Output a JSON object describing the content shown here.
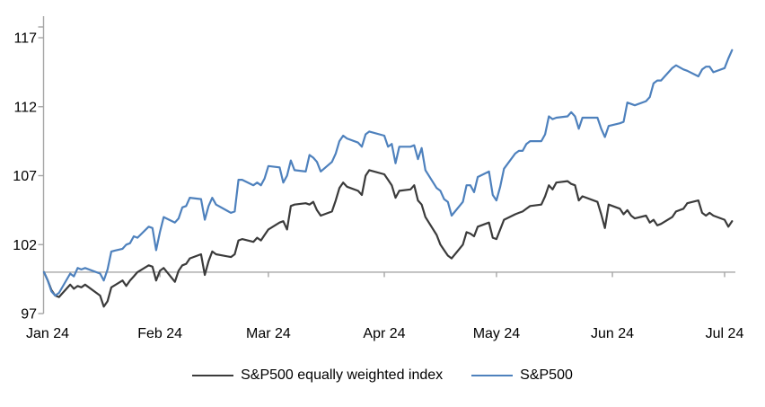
{
  "chart_data": {
    "type": "line",
    "title": "",
    "xlabel": "",
    "ylabel": "",
    "grid": false,
    "legend_position": "bottom-center",
    "background_color": "#ffffff",
    "axis_color": "#a6a6a6",
    "text_color": "#000000",
    "baseline_value": 100,
    "x_axis": {
      "tick_labels": [
        "Jan 24",
        "Feb 24",
        "Mar 24",
        "Apr 24",
        "May 24",
        "Jun 24",
        "Jul 24"
      ],
      "start_date": "2024-01-01",
      "end_date": "2024-07-03"
    },
    "y_axis": {
      "ticks": [
        97,
        102,
        107,
        112,
        117
      ],
      "tick_labels": [
        "97",
        "102",
        "107",
        "112",
        "117"
      ],
      "min": 97,
      "max": 118
    },
    "dates": [
      "01-01",
      "01-02",
      "01-03",
      "01-04",
      "01-05",
      "01-08",
      "01-09",
      "01-10",
      "01-11",
      "01-12",
      "01-16",
      "01-17",
      "01-18",
      "01-19",
      "01-22",
      "01-23",
      "01-24",
      "01-25",
      "01-26",
      "01-29",
      "01-30",
      "01-31",
      "02-01",
      "02-02",
      "02-05",
      "02-06",
      "02-07",
      "02-08",
      "02-09",
      "02-12",
      "02-13",
      "02-14",
      "02-15",
      "02-16",
      "02-20",
      "02-21",
      "02-22",
      "02-23",
      "02-26",
      "02-27",
      "02-28",
      "02-29",
      "03-01",
      "03-04",
      "03-05",
      "03-06",
      "03-07",
      "03-08",
      "03-11",
      "03-12",
      "03-13",
      "03-14",
      "03-15",
      "03-18",
      "03-19",
      "03-20",
      "03-21",
      "03-22",
      "03-25",
      "03-26",
      "03-27",
      "03-28",
      "04-01",
      "04-02",
      "04-03",
      "04-04",
      "04-05",
      "04-08",
      "04-09",
      "04-10",
      "04-11",
      "04-12",
      "04-15",
      "04-16",
      "04-17",
      "04-18",
      "04-19",
      "04-22",
      "04-23",
      "04-24",
      "04-25",
      "04-26",
      "04-29",
      "04-30",
      "05-01",
      "05-02",
      "05-03",
      "05-06",
      "05-07",
      "05-08",
      "05-09",
      "05-10",
      "05-13",
      "05-14",
      "05-15",
      "05-16",
      "05-17",
      "05-20",
      "05-21",
      "05-22",
      "05-23",
      "05-24",
      "05-28",
      "05-29",
      "05-30",
      "05-31",
      "06-03",
      "06-04",
      "06-05",
      "06-06",
      "06-07",
      "06-10",
      "06-11",
      "06-12",
      "06-13",
      "06-14",
      "06-17",
      "06-18",
      "06-20",
      "06-21",
      "06-24",
      "06-25",
      "06-26",
      "06-27",
      "06-28",
      "07-01",
      "07-02",
      "07-03"
    ],
    "series": [
      {
        "name": "S&P500 equally weighted index",
        "color": "#3b3b3b",
        "values": [
          100.0,
          99.4,
          98.7,
          98.3,
          98.2,
          99.1,
          98.8,
          99.0,
          98.9,
          99.1,
          98.3,
          97.5,
          97.9,
          98.9,
          99.4,
          99.0,
          99.4,
          99.7,
          100.0,
          100.5,
          100.4,
          99.4,
          100.1,
          100.3,
          99.3,
          100.1,
          100.5,
          100.6,
          101.0,
          101.3,
          99.8,
          100.8,
          101.5,
          101.3,
          101.1,
          101.3,
          102.3,
          102.4,
          102.2,
          102.5,
          102.3,
          102.7,
          103.1,
          103.6,
          103.7,
          103.1,
          104.8,
          104.9,
          105.0,
          104.9,
          105.1,
          104.5,
          104.1,
          104.4,
          105.2,
          106.1,
          106.5,
          106.2,
          105.9,
          105.6,
          107.0,
          107.4,
          107.1,
          106.7,
          106.3,
          105.4,
          105.9,
          106.0,
          106.3,
          105.2,
          104.9,
          104.0,
          102.7,
          102.0,
          101.6,
          101.2,
          101.0,
          102.0,
          102.9,
          102.8,
          102.6,
          103.3,
          103.6,
          102.5,
          102.4,
          103.1,
          103.8,
          104.2,
          104.3,
          104.4,
          104.6,
          104.8,
          104.9,
          105.5,
          106.3,
          106.0,
          106.5,
          106.6,
          106.4,
          106.3,
          105.2,
          105.5,
          105.1,
          104.2,
          103.2,
          104.9,
          104.6,
          104.2,
          104.5,
          104.1,
          103.9,
          104.1,
          103.6,
          103.8,
          103.4,
          103.5,
          104.0,
          104.4,
          104.6,
          105.0,
          105.2,
          104.3,
          104.1,
          104.3,
          104.1,
          103.8,
          103.3,
          103.7
        ]
      },
      {
        "name": "S&P500",
        "color": "#4e81bd",
        "values": [
          100.0,
          99.4,
          98.6,
          98.3,
          98.5,
          99.9,
          99.7,
          100.3,
          100.2,
          100.3,
          99.9,
          99.4,
          100.2,
          101.5,
          101.7,
          102.0,
          102.1,
          102.6,
          102.5,
          103.3,
          103.2,
          101.6,
          102.9,
          104.0,
          103.6,
          103.9,
          104.7,
          104.8,
          105.4,
          105.3,
          103.8,
          104.8,
          105.4,
          104.9,
          104.3,
          104.4,
          106.7,
          106.7,
          106.3,
          106.5,
          106.3,
          106.8,
          107.7,
          107.6,
          106.5,
          107.0,
          108.1,
          107.4,
          107.3,
          108.5,
          108.3,
          108.0,
          107.3,
          108.0,
          108.6,
          109.5,
          109.9,
          109.7,
          109.4,
          109.1,
          110.0,
          110.2,
          109.9,
          109.1,
          109.3,
          107.9,
          109.1,
          109.1,
          109.2,
          108.2,
          109.0,
          107.4,
          106.1,
          105.9,
          105.3,
          105.1,
          104.1,
          105.1,
          106.3,
          106.3,
          105.8,
          106.9,
          107.3,
          105.6,
          105.2,
          106.2,
          107.5,
          108.6,
          108.8,
          108.8,
          109.3,
          109.5,
          109.5,
          110.0,
          111.3,
          111.1,
          111.2,
          111.3,
          111.6,
          111.3,
          110.4,
          111.2,
          111.2,
          110.4,
          109.8,
          110.6,
          110.8,
          110.9,
          112.3,
          112.2,
          112.1,
          112.4,
          112.7,
          113.7,
          113.9,
          113.9,
          114.8,
          115.0,
          114.7,
          114.6,
          114.2,
          114.7,
          114.9,
          114.9,
          114.5,
          114.8,
          115.5,
          116.1
        ]
      }
    ]
  }
}
